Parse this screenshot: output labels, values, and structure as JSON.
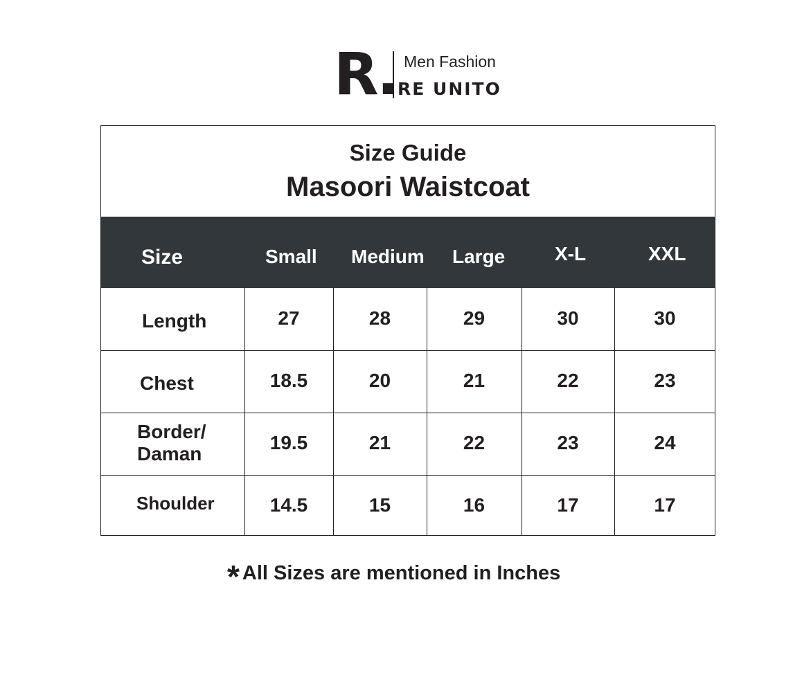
{
  "logo": {
    "mark": "R.",
    "tagline": "Men Fashion",
    "brand": "RE UNITO"
  },
  "title": "Size Guide",
  "product": "Masoori Waistcoat",
  "table": {
    "headers": [
      "Size",
      "Small",
      "Medium",
      "Large",
      "X-L",
      "XXL"
    ],
    "rows": [
      {
        "label": "Length",
        "values": [
          "27",
          "28",
          "29",
          "30",
          "30"
        ]
      },
      {
        "label": "Chest",
        "values": [
          "18.5",
          "20",
          "21",
          "22",
          "23"
        ]
      },
      {
        "label": "Border/\nDaman",
        "values": [
          "19.5",
          "21",
          "22",
          "23",
          "24"
        ]
      },
      {
        "label": "Shoulder",
        "values": [
          "14.5",
          "15",
          "16",
          "17",
          "17"
        ]
      }
    ]
  },
  "note": {
    "star": "*",
    "text": "All Sizes are mentioned in Inches"
  },
  "colors": {
    "header_bg": "#31373a",
    "text": "#231f20"
  }
}
